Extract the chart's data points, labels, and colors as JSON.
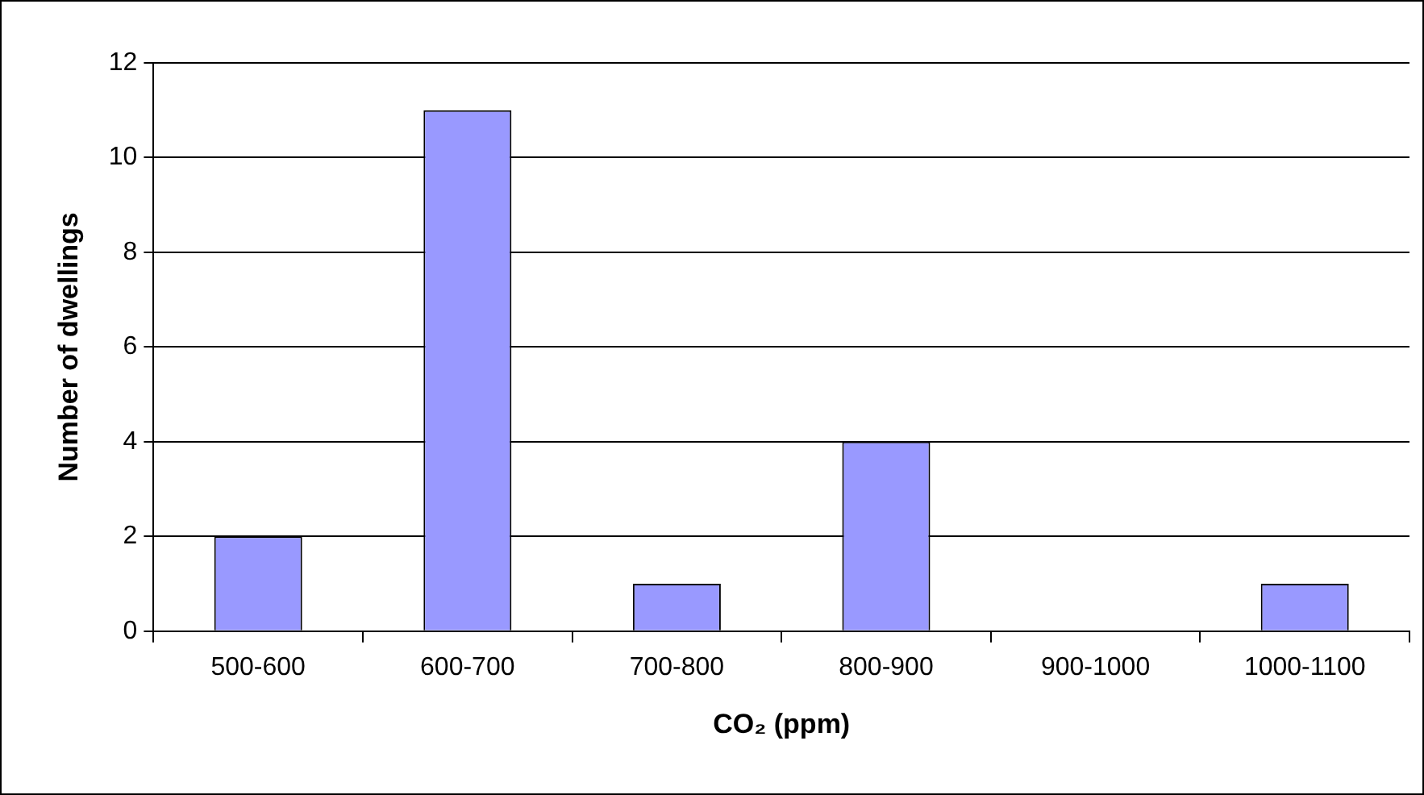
{
  "chart_data": {
    "type": "bar",
    "xlabel": "CO₂ (ppm)",
    "ylabel": "Number of dwellings",
    "categories": [
      "500-600",
      "600-700",
      "700-800",
      "800-900",
      "900-1000",
      "1000-1100"
    ],
    "values": [
      2,
      11,
      1,
      4,
      0,
      1
    ],
    "color": "#9999ff",
    "ylim": [
      0,
      12
    ],
    "yticks": [
      0,
      2,
      4,
      6,
      8,
      10,
      12
    ],
    "grid": "y"
  }
}
